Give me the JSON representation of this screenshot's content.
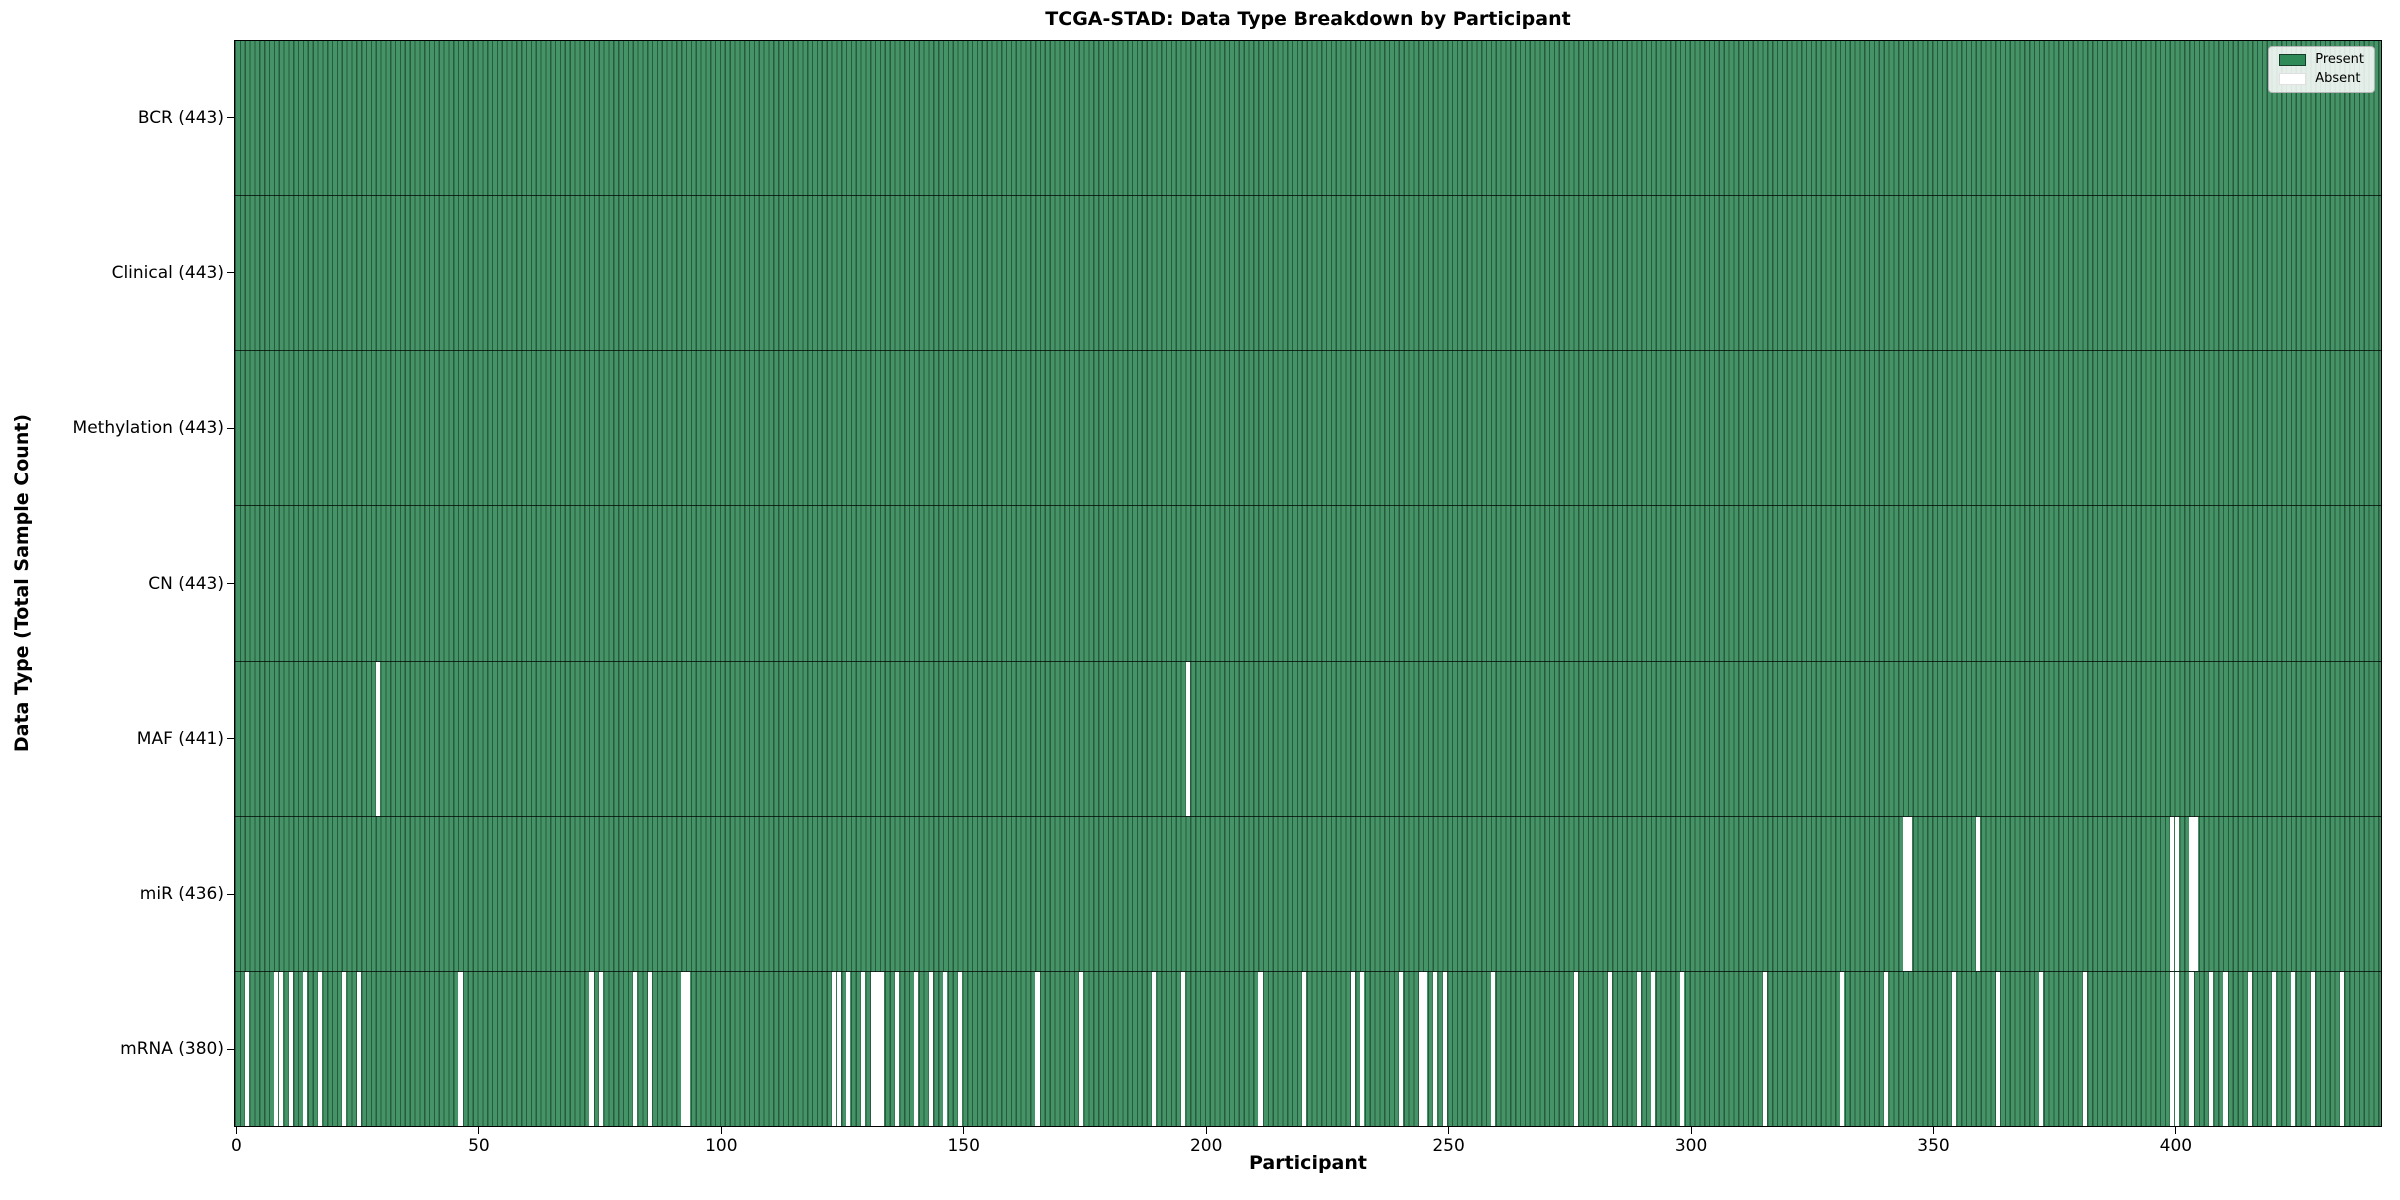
{
  "chart_data": {
    "type": "heatmap",
    "title": "TCGA-STAD: Data Type Breakdown by Participant",
    "xlabel": "Participant",
    "ylabel": "Data Type (Total Sample Count)",
    "x_ticks": [
      0,
      50,
      100,
      150,
      200,
      250,
      300,
      350,
      400
    ],
    "x_range": [
      0,
      443
    ],
    "n_participants": 443,
    "cell_states": [
      "Present",
      "Absent"
    ],
    "legend": {
      "position": "upper-right",
      "items": [
        {
          "label": "Present",
          "color": "#2e8b57"
        },
        {
          "label": "Absent",
          "color": "#ffffff"
        }
      ]
    },
    "colors": {
      "present_fill": "#449467",
      "present_edge": "#275a3e",
      "absent": "#ffffff",
      "row_separator": "rgba(0,0,0,0.72)"
    },
    "rows": [
      {
        "label": "BCR (443)",
        "name": "BCR",
        "present_count": 443,
        "absent_participants": []
      },
      {
        "label": "Clinical (443)",
        "name": "Clinical",
        "present_count": 443,
        "absent_participants": []
      },
      {
        "label": "Methylation (443)",
        "name": "Methylation",
        "present_count": 443,
        "absent_participants": []
      },
      {
        "label": "CN (443)",
        "name": "CN",
        "present_count": 443,
        "absent_participants": []
      },
      {
        "label": "MAF (441)",
        "name": "MAF",
        "present_count": 441,
        "absent_participants": [
          29,
          196
        ]
      },
      {
        "label": "miR (436)",
        "name": "miR",
        "present_count": 436,
        "absent_participants": [
          344,
          345,
          359,
          399,
          400,
          403,
          404
        ]
      },
      {
        "label": "mRNA (380)",
        "name": "mRNA",
        "present_count": 380,
        "absent_participants": [
          2,
          8,
          9,
          11,
          14,
          17,
          22,
          25,
          46,
          73,
          75,
          82,
          85,
          92,
          93,
          123,
          124,
          126,
          129,
          131,
          132,
          133,
          136,
          140,
          143,
          146,
          149,
          165,
          174,
          189,
          195,
          211,
          220,
          230,
          232,
          240,
          244,
          245,
          247,
          249,
          259,
          276,
          283,
          289,
          292,
          298,
          315,
          331,
          340,
          354,
          363,
          372,
          381,
          399,
          400,
          403,
          407,
          410,
          415,
          420,
          424,
          428,
          434
        ]
      }
    ]
  }
}
